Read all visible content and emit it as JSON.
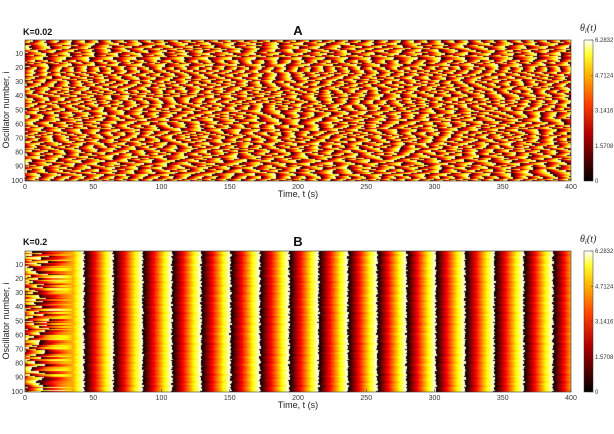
{
  "chart_data": [
    {
      "type": "heatmap",
      "panel_label": "A",
      "annotation": "K=0.02",
      "xlabel": "Time, t (s)",
      "ylabel": "Oscillator number, i",
      "xlim": [
        0,
        400
      ],
      "ylim": [
        100,
        1
      ],
      "xticks": [
        "0",
        "50",
        "100",
        "150",
        "200",
        "250",
        "300",
        "350",
        "400"
      ],
      "yticks": [
        "10",
        "20",
        "30",
        "40",
        "50",
        "60",
        "70",
        "80",
        "90",
        "100"
      ],
      "colorbar": {
        "title": "θi(t)",
        "title_main": "θ",
        "title_sub": "i",
        "title_tail": "(t)",
        "ticks": [
          "0",
          "1.5708",
          "3.1416",
          "4.7124",
          "6.2832"
        ],
        "range": [
          0,
          6.2832
        ],
        "colormap": "hot"
      },
      "pattern": "incoherent",
      "description_values": {
        "oscillators": 100,
        "duration_s": 400,
        "mean_frequency_cycles": 38
      }
    },
    {
      "type": "heatmap",
      "panel_label": "B",
      "annotation": "K=0.2",
      "xlabel": "Time, t (s)",
      "ylabel": "Oscillator number, i",
      "xlim": [
        0,
        400
      ],
      "ylim": [
        100,
        1
      ],
      "xticks": [
        "0",
        "50",
        "100",
        "150",
        "200",
        "250",
        "300",
        "350",
        "400"
      ],
      "yticks": [
        "10",
        "20",
        "30",
        "40",
        "50",
        "60",
        "70",
        "80",
        "90",
        "100"
      ],
      "colorbar": {
        "title": "θi(t)",
        "title_main": "θ",
        "title_sub": "i",
        "title_tail": "(t)",
        "ticks": [
          "0",
          "1.5708",
          "3.1416",
          "4.7124",
          "6.2832"
        ],
        "range": [
          0,
          6.2832
        ],
        "colormap": "hot"
      },
      "pattern": "synchronized",
      "description_values": {
        "oscillators": 100,
        "duration_s": 400,
        "sync_onset_s": 35,
        "bands_after_sync": 17
      }
    }
  ],
  "colors": {
    "hot_dark": "#000000",
    "hot_red": "#c00000",
    "hot_orange": "#ff6a00",
    "hot_yellow": "#ffff40",
    "hot_white": "#ffffff"
  }
}
